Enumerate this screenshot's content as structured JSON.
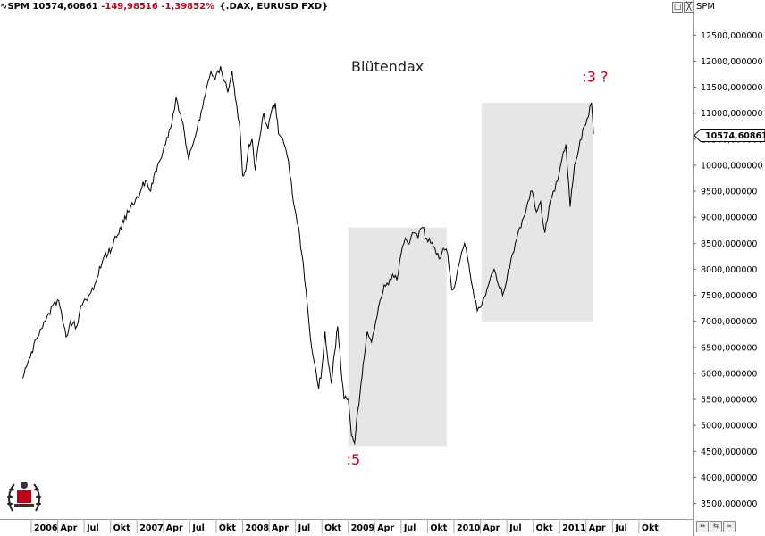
{
  "header": {
    "symbol": "SPM",
    "last": "10574,60861",
    "change": "-149,98516",
    "change_pct": "-1,39852%",
    "instrument": "{.DAX, EURUSD FXD}"
  },
  "panel_buttons": [
    "□",
    "╳"
  ],
  "right_axis_label": "SPM",
  "nav_buttons": [
    "↔",
    "⇆",
    "≈"
  ],
  "colors": {
    "negative": "#c0001a",
    "highlight": "#c0001a",
    "box": "#e6e6e6",
    "line": "#000000"
  },
  "chart_data": {
    "type": "line",
    "title": "Blütendax",
    "last_value_label": "10574,60861",
    "last_value": 10574.6,
    "ylim": [
      3200,
      12900
    ],
    "yticks": [
      3500,
      4000,
      4500,
      5000,
      5500,
      6000,
      6500,
      7000,
      7500,
      8000,
      8500,
      9000,
      9500,
      10000,
      10500,
      11000,
      11500,
      12000,
      12500
    ],
    "ytick_labels": [
      "3500,000000",
      "4000,000000",
      "4500,000000",
      "5000,000000",
      "5500,000000",
      "6000,000000",
      "6500,000000",
      "7000,000000",
      "7500,000000",
      "8000,000000",
      "8500,000000",
      "9000,000000",
      "9500,000000",
      "10000,000000",
      "10500,000000",
      "11000,000000",
      "11500,000000",
      "12000,000000",
      "12500,000000"
    ],
    "xlim": [
      2006.0,
      2011.92
    ],
    "xticks": [
      {
        "x": 2006.0,
        "label": "2006"
      },
      {
        "x": 2006.25,
        "label": "Apr"
      },
      {
        "x": 2006.5,
        "label": "Jul"
      },
      {
        "x": 2006.75,
        "label": "Okt"
      },
      {
        "x": 2007.0,
        "label": "2007"
      },
      {
        "x": 2007.25,
        "label": "Apr"
      },
      {
        "x": 2007.5,
        "label": "Jul"
      },
      {
        "x": 2007.75,
        "label": "Okt"
      },
      {
        "x": 2008.0,
        "label": "2008"
      },
      {
        "x": 2008.25,
        "label": "Apr"
      },
      {
        "x": 2008.5,
        "label": "Jul"
      },
      {
        "x": 2008.75,
        "label": "Okt"
      },
      {
        "x": 2009.0,
        "label": "2009"
      },
      {
        "x": 2009.25,
        "label": "Apr"
      },
      {
        "x": 2009.5,
        "label": "Jul"
      },
      {
        "x": 2009.75,
        "label": "Okt"
      },
      {
        "x": 2010.0,
        "label": "2010"
      },
      {
        "x": 2010.25,
        "label": "Apr"
      },
      {
        "x": 2010.5,
        "label": "Jul"
      },
      {
        "x": 2010.75,
        "label": "Okt"
      },
      {
        "x": 2011.0,
        "label": "2011"
      },
      {
        "x": 2011.25,
        "label": "Apr"
      },
      {
        "x": 2011.5,
        "label": "Jul"
      },
      {
        "x": 2011.75,
        "label": "Okt"
      }
    ],
    "series": [
      {
        "x": [
          2005.92,
          2005.99,
          2006.06,
          2006.13,
          2006.2,
          2006.26,
          2006.33,
          2006.37,
          2006.43,
          2006.47,
          2006.53,
          2006.6,
          2006.68,
          2006.76,
          2006.84,
          2006.92,
          2007.0,
          2007.08,
          2007.13,
          2007.16,
          2007.22,
          2007.27,
          2007.33,
          2007.37,
          2007.41,
          2007.45,
          2007.49,
          2007.53,
          2007.57,
          2007.62,
          2007.66,
          2007.7,
          2007.74,
          2007.79,
          2007.83,
          2007.86,
          2007.9,
          2007.93,
          2007.97,
          2008.0,
          2008.03,
          2008.06,
          2008.09,
          2008.12,
          2008.16,
          2008.2,
          2008.24,
          2008.28,
          2008.31,
          2008.34,
          2008.38,
          2008.42,
          2008.46,
          2008.49,
          2008.53,
          2008.56,
          2008.6,
          2008.64,
          2008.68,
          2008.72,
          2008.75,
          2008.78,
          2008.81,
          2008.84,
          2008.87,
          2008.9,
          2008.93,
          2008.96,
          2009.0,
          2009.03,
          2009.06,
          2009.09,
          2009.12,
          2009.15,
          2009.18,
          2009.22,
          2009.26,
          2009.3,
          2009.34,
          2009.38,
          2009.42,
          2009.46,
          2009.5,
          2009.54,
          2009.58,
          2009.62,
          2009.66,
          2009.7,
          2009.74,
          2009.78,
          2009.82,
          2009.86,
          2009.9,
          2009.94,
          2009.98,
          2010.02,
          2010.06,
          2010.1,
          2010.14,
          2010.18,
          2010.22,
          2010.26,
          2010.3,
          2010.34,
          2010.38,
          2010.42,
          2010.46,
          2010.5,
          2010.54,
          2010.58,
          2010.62,
          2010.66,
          2010.7,
          2010.74,
          2010.78,
          2010.82,
          2010.86,
          2010.9,
          2010.94,
          2010.98,
          2011.02,
          2011.06,
          2011.1,
          2011.14,
          2011.18,
          2011.22,
          2011.26,
          2011.3,
          2011.32
        ],
        "y": [
          5900,
          6300,
          6700,
          7000,
          7300,
          7400,
          6700,
          7000,
          6900,
          7300,
          7400,
          7700,
          8200,
          8400,
          8800,
          9100,
          9400,
          9700,
          9500,
          9800,
          10100,
          10400,
          10800,
          11300,
          11000,
          10600,
          10100,
          10400,
          10700,
          11100,
          11500,
          11800,
          11650,
          11900,
          11600,
          11400,
          11800,
          11300,
          10800,
          9800,
          9900,
          10400,
          10500,
          9900,
          10500,
          11000,
          10700,
          11100,
          11200,
          10600,
          10500,
          10200,
          9700,
          9200,
          8800,
          8300,
          7600,
          6700,
          6200,
          5700,
          6100,
          6800,
          6200,
          5800,
          6400,
          6900,
          6100,
          5500,
          5500,
          4800,
          4650,
          5300,
          5800,
          6300,
          6800,
          6600,
          7000,
          7400,
          7700,
          7700,
          7900,
          7800,
          8300,
          8600,
          8500,
          8700,
          8600,
          8800,
          8600,
          8500,
          8400,
          8200,
          8400,
          8300,
          7600,
          7800,
          8200,
          8500,
          8100,
          7600,
          7200,
          7300,
          7500,
          7800,
          8000,
          7700,
          7500,
          7800,
          8200,
          8500,
          8800,
          9000,
          9300,
          9500,
          9100,
          9300,
          8700,
          9200,
          9500,
          9700,
          10100,
          10400,
          9200,
          10000,
          10300,
          10700,
          10900,
          11200,
          10600
        ]
      }
    ],
    "boxes": [
      {
        "x0": 2009.0,
        "x1": 2009.93,
        "y0": 4600,
        "y1": 8800
      },
      {
        "x0": 2010.26,
        "x1": 2011.32,
        "y0": 7000,
        "y1": 11200
      }
    ],
    "annotations": [
      {
        "text": ":5",
        "x": 2009.05,
        "y": 4250
      },
      {
        "text": ":3 ?",
        "x": 2011.28,
        "y": 11600
      }
    ]
  }
}
